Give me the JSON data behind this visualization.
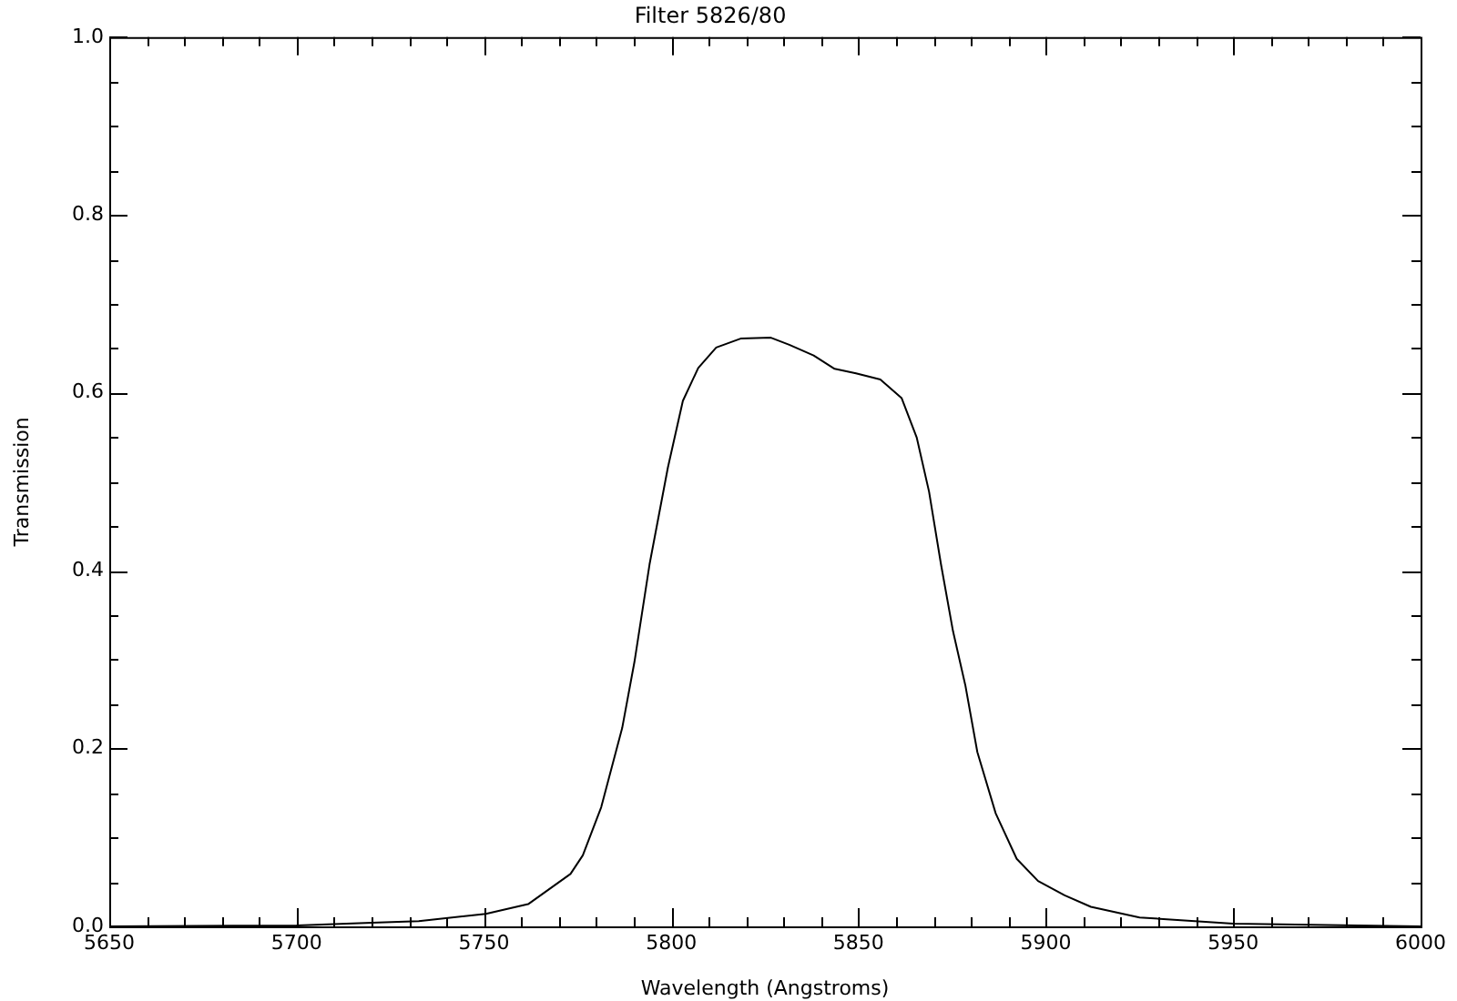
{
  "chart_data": {
    "type": "line",
    "title": "Filter 5826/80",
    "xlabel": "Wavelength (Angstroms)",
    "ylabel": "Transmission",
    "series": [
      {
        "color": "#000000",
        "x": [
          5650,
          5700,
          5720,
          5732.6,
          5750.5,
          5761.8,
          5773.1,
          5776.4,
          5781.3,
          5786.9,
          5790.2,
          5794.2,
          5799.1,
          5803.1,
          5807.2,
          5812.0,
          5818.5,
          5826.6,
          5831.5,
          5838.0,
          5843.6,
          5849.3,
          5855.8,
          5861.5,
          5865.5,
          5868.8,
          5872.0,
          5875.2,
          5878.5,
          5881.7,
          5886.6,
          5892.2,
          5897.9,
          5905,
          5912,
          5925,
          5950,
          6000
        ],
        "values": [
          0,
          0.001,
          0.004,
          0.006,
          0.014,
          0.025,
          0.059,
          0.08,
          0.134,
          0.223,
          0.298,
          0.407,
          0.516,
          0.591,
          0.628,
          0.651,
          0.661,
          0.662,
          0.654,
          0.642,
          0.627,
          0.622,
          0.615,
          0.594,
          0.55,
          0.489,
          0.407,
          0.332,
          0.271,
          0.196,
          0.127,
          0.076,
          0.051,
          0.035,
          0.022,
          0.01,
          0.003,
          0
        ]
      }
    ],
    "xlim": [
      5650,
      6000
    ],
    "xticks": [
      5650,
      {
        "value": 5660,
        "label": null
      },
      {
        "value": 5670,
        "label": null
      },
      {
        "value": 5680,
        "label": null
      },
      {
        "value": 5690,
        "label": null
      },
      5700,
      {
        "value": 5710,
        "label": null
      },
      {
        "value": 5720,
        "label": null
      },
      {
        "value": 5730,
        "label": null
      },
      {
        "value": 5740,
        "label": null
      },
      5750,
      {
        "value": 5760,
        "label": null
      },
      {
        "value": 5770,
        "label": null
      },
      {
        "value": 5780,
        "label": null
      },
      {
        "value": 5790,
        "label": null
      },
      5800,
      {
        "value": 5810,
        "label": null
      },
      {
        "value": 5820,
        "label": null
      },
      {
        "value": 5830,
        "label": null
      },
      {
        "value": 5840,
        "label": null
      },
      5850,
      {
        "value": 5860,
        "label": null
      },
      {
        "value": 5870,
        "label": null
      },
      {
        "value": 5880,
        "label": null
      },
      {
        "value": 5890,
        "label": null
      },
      5900,
      {
        "value": 5910,
        "label": null
      },
      {
        "value": 5920,
        "label": null
      },
      {
        "value": 5930,
        "label": null
      },
      {
        "value": 5940,
        "label": null
      },
      5950,
      {
        "value": 5960,
        "label": null
      },
      {
        "value": 5970,
        "label": null
      },
      {
        "value": 5980,
        "label": null
      },
      {
        "value": 5990,
        "label": null
      },
      6000
    ],
    "ylim": [
      0,
      1
    ],
    "yticks": [
      {
        "value": 0,
        "label": "0.0"
      },
      {
        "value": 0.05,
        "label": null
      },
      {
        "value": 0.1,
        "label": null
      },
      {
        "value": 0.15,
        "label": null
      },
      {
        "value": 0.2,
        "label": "0.2"
      },
      {
        "value": 0.25,
        "label": null
      },
      {
        "value": 0.3,
        "label": null
      },
      {
        "value": 0.35,
        "label": null
      },
      {
        "value": 0.4,
        "label": "0.4"
      },
      {
        "value": 0.45,
        "label": null
      },
      {
        "value": 0.5,
        "label": null
      },
      {
        "value": 0.55,
        "label": null
      },
      {
        "value": 0.6,
        "label": "0.6"
      },
      {
        "value": 0.65,
        "label": null
      },
      {
        "value": 0.7,
        "label": null
      },
      {
        "value": 0.75,
        "label": null
      },
      {
        "value": 0.8,
        "label": "0.8"
      },
      {
        "value": 0.85,
        "label": null
      },
      {
        "value": 0.9,
        "label": null
      },
      {
        "value": 0.95,
        "label": null
      },
      {
        "value": 1,
        "label": "1.0"
      }
    ],
    "grid": false,
    "legend": false,
    "marker": "none",
    "line_style": "solid"
  }
}
